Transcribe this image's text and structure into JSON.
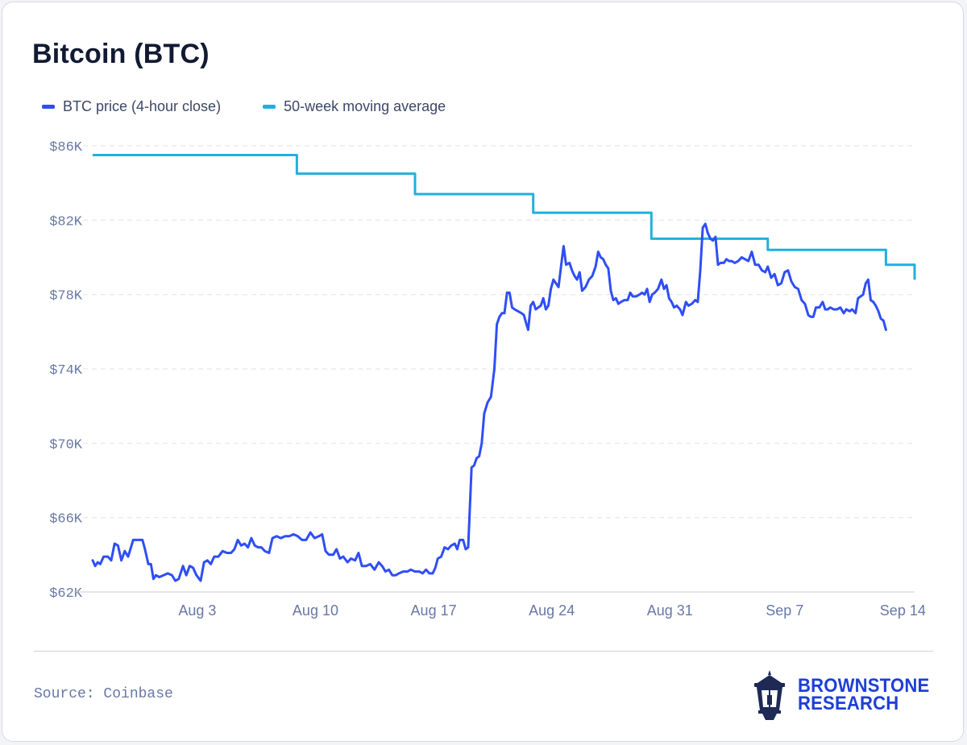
{
  "title": "Bitcoin (BTC)",
  "source": "Source: Coinbase",
  "brand": {
    "line1": "BROWNSTONE",
    "line2": "RESEARCH",
    "logo_icon": "lantern-icon"
  },
  "colors": {
    "price": "#2f4ef5",
    "ma": "#1fb1dc",
    "grid": "#e3e6ee",
    "axis_text": "#6878a6",
    "brand": "#1e3fd6"
  },
  "chart_data": {
    "type": "line",
    "title": "Bitcoin (BTC)",
    "xlabel": "",
    "ylabel": "",
    "x_start": "Jul 28",
    "x_end": "Sep 15",
    "ylim": [
      62000,
      86000
    ],
    "y_ticks": [
      62000,
      66000,
      70000,
      74000,
      78000,
      82000,
      86000
    ],
    "y_tick_labels": [
      "$62K",
      "$66K",
      "$70K",
      "$74K",
      "$78K",
      "$82K",
      "$86K"
    ],
    "x_ticks": [
      {
        "label": "Aug 3",
        "day": 6.2
      },
      {
        "label": "Aug 10",
        "day": 13.2
      },
      {
        "label": "Aug 17",
        "day": 20.2
      },
      {
        "label": "Aug 24",
        "day": 27.2
      },
      {
        "label": "Aug 31",
        "day": 34.2
      },
      {
        "label": "Sep 7",
        "day": 41.0
      },
      {
        "label": "Sep 14",
        "day": 48.0
      }
    ],
    "legend_position": "top-left",
    "grid": "horizontal dashed",
    "series": [
      {
        "name": "BTC price (4-hour close)",
        "color": "#2f4ef5",
        "points": [
          [
            0.0,
            63700
          ],
          [
            0.15,
            63400
          ],
          [
            0.3,
            63600
          ],
          [
            0.45,
            63500
          ],
          [
            0.65,
            63900
          ],
          [
            0.9,
            63900
          ],
          [
            1.1,
            63700
          ],
          [
            1.3,
            64600
          ],
          [
            1.5,
            64500
          ],
          [
            1.7,
            63700
          ],
          [
            1.9,
            64200
          ],
          [
            2.1,
            63900
          ],
          [
            2.4,
            64800
          ],
          [
            2.7,
            64800
          ],
          [
            2.95,
            64800
          ],
          [
            3.1,
            64300
          ],
          [
            3.3,
            63500
          ],
          [
            3.45,
            63500
          ],
          [
            3.6,
            62700
          ],
          [
            3.75,
            62900
          ],
          [
            3.95,
            62800
          ],
          [
            4.2,
            62900
          ],
          [
            4.45,
            63000
          ],
          [
            4.7,
            62900
          ],
          [
            4.9,
            62600
          ],
          [
            5.1,
            62700
          ],
          [
            5.35,
            63400
          ],
          [
            5.55,
            62900
          ],
          [
            5.75,
            63400
          ],
          [
            5.95,
            63300
          ],
          [
            6.15,
            62900
          ],
          [
            6.4,
            62600
          ],
          [
            6.6,
            63600
          ],
          [
            6.8,
            63700
          ],
          [
            7.0,
            63500
          ],
          [
            7.2,
            63900
          ],
          [
            7.45,
            63900
          ],
          [
            7.7,
            64200
          ],
          [
            7.95,
            64100
          ],
          [
            8.2,
            64100
          ],
          [
            8.4,
            64300
          ],
          [
            8.6,
            64800
          ],
          [
            8.8,
            64500
          ],
          [
            9.0,
            64600
          ],
          [
            9.2,
            64400
          ],
          [
            9.4,
            64900
          ],
          [
            9.6,
            64500
          ],
          [
            9.8,
            64400
          ],
          [
            10.0,
            64400
          ],
          [
            10.2,
            64200
          ],
          [
            10.45,
            64100
          ],
          [
            10.65,
            64900
          ],
          [
            10.9,
            65000
          ],
          [
            11.15,
            64900
          ],
          [
            11.4,
            65000
          ],
          [
            11.65,
            65000
          ],
          [
            11.9,
            65100
          ],
          [
            12.15,
            65000
          ],
          [
            12.4,
            64800
          ],
          [
            12.65,
            64800
          ],
          [
            12.9,
            65200
          ],
          [
            13.15,
            64900
          ],
          [
            13.4,
            65000
          ],
          [
            13.6,
            65100
          ],
          [
            13.8,
            64200
          ],
          [
            14.0,
            64000
          ],
          [
            14.25,
            64000
          ],
          [
            14.45,
            64300
          ],
          [
            14.65,
            63800
          ],
          [
            14.85,
            63900
          ],
          [
            15.1,
            63600
          ],
          [
            15.3,
            63800
          ],
          [
            15.55,
            63700
          ],
          [
            15.75,
            64100
          ],
          [
            15.95,
            63400
          ],
          [
            16.2,
            63400
          ],
          [
            16.45,
            63500
          ],
          [
            16.7,
            63200
          ],
          [
            16.95,
            63600
          ],
          [
            17.15,
            63400
          ],
          [
            17.35,
            63100
          ],
          [
            17.55,
            63200
          ],
          [
            17.75,
            62900
          ],
          [
            17.95,
            62900
          ],
          [
            18.15,
            63000
          ],
          [
            18.4,
            63100
          ],
          [
            18.65,
            63100
          ],
          [
            18.85,
            63200
          ],
          [
            19.1,
            63100
          ],
          [
            19.35,
            63100
          ],
          [
            19.55,
            63000
          ],
          [
            19.75,
            63200
          ],
          [
            19.95,
            63000
          ],
          [
            20.15,
            63000
          ],
          [
            20.3,
            63300
          ],
          [
            20.45,
            63800
          ],
          [
            20.65,
            63900
          ],
          [
            20.85,
            64400
          ],
          [
            21.05,
            64300
          ],
          [
            21.25,
            64500
          ],
          [
            21.45,
            64600
          ],
          [
            21.6,
            64300
          ],
          [
            21.75,
            64800
          ],
          [
            21.95,
            64800
          ],
          [
            22.1,
            64300
          ],
          [
            22.25,
            64400
          ],
          [
            22.45,
            68700
          ],
          [
            22.6,
            68800
          ],
          [
            22.75,
            69200
          ],
          [
            22.9,
            69300
          ],
          [
            23.05,
            70000
          ],
          [
            23.2,
            71600
          ],
          [
            23.4,
            72200
          ],
          [
            23.6,
            72500
          ],
          [
            23.8,
            74000
          ],
          [
            23.95,
            76400
          ],
          [
            24.1,
            76800
          ],
          [
            24.25,
            77000
          ],
          [
            24.4,
            77000
          ],
          [
            24.55,
            78100
          ],
          [
            24.7,
            78100
          ],
          [
            24.85,
            77300
          ],
          [
            25.0,
            77200
          ],
          [
            25.2,
            77100
          ],
          [
            25.4,
            77000
          ],
          [
            25.55,
            76900
          ],
          [
            25.7,
            76400
          ],
          [
            25.8,
            76100
          ],
          [
            25.95,
            77400
          ],
          [
            26.1,
            77600
          ],
          [
            26.25,
            77200
          ],
          [
            26.4,
            77300
          ],
          [
            26.55,
            77400
          ],
          [
            26.7,
            77800
          ],
          [
            26.85,
            77200
          ],
          [
            27.0,
            77400
          ],
          [
            27.15,
            78300
          ],
          [
            27.3,
            78800
          ],
          [
            27.45,
            78600
          ],
          [
            27.6,
            78400
          ],
          [
            27.75,
            79500
          ],
          [
            27.9,
            80600
          ],
          [
            28.05,
            79600
          ],
          [
            28.25,
            79700
          ],
          [
            28.4,
            79300
          ],
          [
            28.55,
            79000
          ],
          [
            28.7,
            78800
          ],
          [
            28.85,
            79200
          ],
          [
            29.0,
            78200
          ],
          [
            29.2,
            78400
          ],
          [
            29.4,
            78800
          ],
          [
            29.6,
            79000
          ],
          [
            29.8,
            79500
          ],
          [
            29.95,
            80300
          ],
          [
            30.1,
            80000
          ],
          [
            30.25,
            79900
          ],
          [
            30.4,
            79600
          ],
          [
            30.55,
            79400
          ],
          [
            30.7,
            78200
          ],
          [
            30.85,
            77700
          ],
          [
            31.0,
            77800
          ],
          [
            31.15,
            77500
          ],
          [
            31.3,
            77600
          ],
          [
            31.5,
            77700
          ],
          [
            31.7,
            77700
          ],
          [
            31.85,
            78100
          ],
          [
            32.0,
            77900
          ],
          [
            32.2,
            77900
          ],
          [
            32.4,
            78000
          ],
          [
            32.55,
            78100
          ],
          [
            32.7,
            78000
          ],
          [
            32.85,
            78300
          ],
          [
            33.0,
            77600
          ],
          [
            33.15,
            78000
          ],
          [
            33.3,
            78100
          ],
          [
            33.5,
            78300
          ],
          [
            33.7,
            78800
          ],
          [
            33.85,
            78300
          ],
          [
            34.0,
            78500
          ],
          [
            34.15,
            77800
          ],
          [
            34.3,
            77600
          ],
          [
            34.45,
            77300
          ],
          [
            34.6,
            77400
          ],
          [
            34.8,
            77200
          ],
          [
            34.95,
            76900
          ],
          [
            35.15,
            77600
          ],
          [
            35.3,
            77400
          ],
          [
            35.5,
            77500
          ],
          [
            35.7,
            77700
          ],
          [
            35.85,
            77600
          ],
          [
            36.0,
            79300
          ],
          [
            36.15,
            81600
          ],
          [
            36.3,
            81800
          ],
          [
            36.45,
            81300
          ],
          [
            36.6,
            81000
          ],
          [
            36.75,
            80900
          ],
          [
            36.9,
            81100
          ],
          [
            37.05,
            79600
          ],
          [
            37.2,
            79700
          ],
          [
            37.4,
            79700
          ],
          [
            37.55,
            79900
          ],
          [
            37.7,
            79800
          ],
          [
            37.85,
            79800
          ],
          [
            38.05,
            79700
          ],
          [
            38.25,
            79800
          ],
          [
            38.45,
            80000
          ],
          [
            38.65,
            79900
          ],
          [
            38.85,
            79800
          ],
          [
            39.05,
            80300
          ],
          [
            39.25,
            79600
          ],
          [
            39.45,
            79600
          ],
          [
            39.65,
            79300
          ],
          [
            39.85,
            79200
          ],
          [
            40.0,
            79500
          ],
          [
            40.2,
            78900
          ],
          [
            40.4,
            79100
          ],
          [
            40.6,
            78500
          ],
          [
            40.8,
            78600
          ],
          [
            41.0,
            79200
          ],
          [
            41.2,
            79300
          ],
          [
            41.4,
            78700
          ],
          [
            41.6,
            78400
          ],
          [
            41.8,
            78300
          ],
          [
            42.0,
            77700
          ],
          [
            42.2,
            77500
          ],
          [
            42.4,
            76900
          ],
          [
            42.55,
            76800
          ],
          [
            42.7,
            76800
          ],
          [
            42.85,
            77300
          ],
          [
            43.05,
            77300
          ],
          [
            43.25,
            77600
          ],
          [
            43.4,
            77200
          ],
          [
            43.55,
            77200
          ],
          [
            43.7,
            77300
          ],
          [
            43.9,
            77200
          ],
          [
            44.1,
            77200
          ],
          [
            44.3,
            77300
          ],
          [
            44.5,
            77000
          ],
          [
            44.65,
            77200
          ],
          [
            44.85,
            77100
          ],
          [
            45.0,
            77200
          ],
          [
            45.2,
            77000
          ],
          [
            45.35,
            77800
          ],
          [
            45.5,
            77900
          ],
          [
            45.65,
            78000
          ],
          [
            45.8,
            78600
          ],
          [
            45.95,
            78800
          ],
          [
            46.1,
            77700
          ],
          [
            46.25,
            77600
          ],
          [
            46.4,
            77400
          ],
          [
            46.55,
            77100
          ],
          [
            46.7,
            76700
          ],
          [
            46.85,
            76600
          ],
          [
            47.0,
            76100
          ]
        ]
      },
      {
        "name": "50-week moving average",
        "color": "#1fb1dc",
        "steps": [
          {
            "from": 0.0,
            "to": 12.1,
            "value": 85500
          },
          {
            "from": 12.1,
            "to": 19.1,
            "value": 84500
          },
          {
            "from": 19.1,
            "to": 26.1,
            "value": 83400
          },
          {
            "from": 26.1,
            "to": 33.1,
            "value": 82400
          },
          {
            "from": 33.1,
            "to": 40.0,
            "value": 81000
          },
          {
            "from": 40.0,
            "to": 47.0,
            "value": 80400
          },
          {
            "from": 47.0,
            "to": 48.7,
            "value": 79600
          }
        ],
        "end_value": 78800
      }
    ]
  }
}
